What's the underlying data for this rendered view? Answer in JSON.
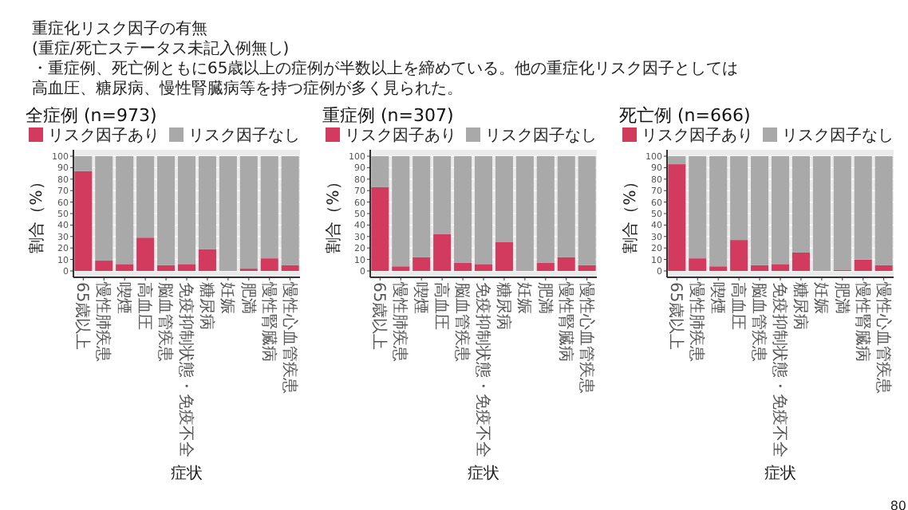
{
  "chart_data": [
    {
      "type": "other",
      "title": "重症化リスク因子の有無",
      "subtitle": "(重症/死亡ステータス未記入例無し)",
      "annotations": [
        "・重症例、死亡例ともに65歳以上の症例が半数以上を締めている。他の重症化リスク因子としては",
        "高血圧、糖尿病、慢性腎臓病等を持つ症例が多く見られた。",
        "80"
      ]
    },
    {
      "type": "bar",
      "title": "全症例 (n=973)",
      "xlabel": "症状",
      "ylabel": "割合（%）",
      "stacked": true,
      "legend": "top",
      "ylim": [
        0,
        100
      ],
      "yticks": [
        0,
        10,
        20,
        30,
        40,
        50,
        60,
        70,
        80,
        90,
        100
      ],
      "grid": true,
      "categories": [
        "65歳以上",
        "慢性肺疾患",
        "喫煙",
        "高血圧",
        "脳血管疾患",
        "免疫抑制状態・免疫不全",
        "糖尿病",
        "妊娠",
        "肥満",
        "慢性腎臓病",
        "慢性心血管疾患"
      ],
      "series": [
        {
          "name": "リスク因子あり",
          "color": "#d23b5e",
          "values": [
            87,
            9,
            6,
            29,
            5,
            6,
            19,
            0,
            2,
            11,
            5
          ]
        },
        {
          "name": "リスク因子なし",
          "color": "#a9a9a9",
          "values": [
            13,
            91,
            94,
            71,
            95,
            94,
            81,
            100,
            98,
            89,
            95
          ]
        }
      ]
    },
    {
      "type": "bar",
      "title": "重症例 (n=307)",
      "xlabel": "症状",
      "ylabel": "割合（%）",
      "stacked": true,
      "legend": "top",
      "ylim": [
        0,
        100
      ],
      "yticks": [
        0,
        10,
        20,
        30,
        40,
        50,
        60,
        70,
        80,
        90,
        100
      ],
      "grid": true,
      "categories": [
        "65歳以上",
        "慢性肺疾患",
        "喫煙",
        "高血圧",
        "脳血管疾患",
        "免疫抑制状態・免疫不全",
        "糖尿病",
        "妊娠",
        "肥満",
        "慢性腎臓病",
        "慢性心血管疾患"
      ],
      "series": [
        {
          "name": "リスク因子あり",
          "color": "#d23b5e",
          "values": [
            73,
            4,
            12,
            32,
            7,
            6,
            25,
            0,
            7,
            12,
            5
          ]
        },
        {
          "name": "リスク因子なし",
          "color": "#a9a9a9",
          "values": [
            27,
            96,
            88,
            68,
            93,
            94,
            75,
            100,
            93,
            88,
            95
          ]
        }
      ]
    },
    {
      "type": "bar",
      "title": "死亡例 (n=666)",
      "xlabel": "症状",
      "ylabel": "割合（%）",
      "stacked": true,
      "legend": "top",
      "ylim": [
        0,
        100
      ],
      "yticks": [
        0,
        10,
        20,
        30,
        40,
        50,
        60,
        70,
        80,
        90,
        100
      ],
      "grid": true,
      "categories": [
        "65歳以上",
        "慢性肺疾患",
        "喫煙",
        "高血圧",
        "脳血管疾患",
        "免疫抑制状態・免疫不全",
        "糖尿病",
        "妊娠",
        "肥満",
        "慢性腎臓病",
        "慢性心血管疾患"
      ],
      "series": [
        {
          "name": "リスク因子あり",
          "color": "#d23b5e",
          "values": [
            93,
            11,
            4,
            27,
            5,
            6,
            16,
            0,
            1,
            10,
            5
          ]
        },
        {
          "name": "リスク因子なし",
          "color": "#a9a9a9",
          "values": [
            7,
            89,
            96,
            73,
            95,
            94,
            84,
            100,
            99,
            90,
            95
          ]
        }
      ]
    }
  ]
}
